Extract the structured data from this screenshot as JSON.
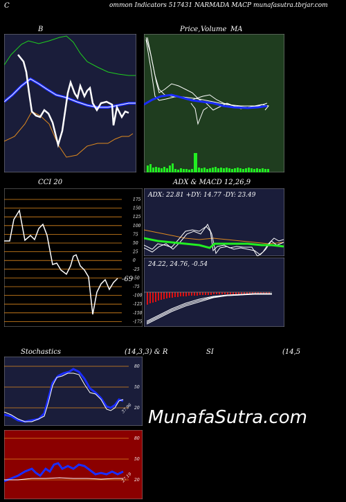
{
  "header": {
    "title": "ommon  Indicators 517431 NARMADA MACP munafasutra.tbrjar.com",
    "left_letter": "C"
  },
  "bollinger": {
    "label": "B"
  },
  "price": {
    "label": "Price,",
    "overlay_label": "Volume",
    "ma_label": "MA"
  },
  "cci": {
    "label": "CCI 20",
    "last_value": "-69",
    "ticks": [
      "175",
      "150",
      "125",
      "100",
      "75",
      "50",
      "25",
      "0",
      "-25",
      "-50",
      "-75",
      "-100",
      "-125",
      "-150",
      "-175"
    ]
  },
  "adx": {
    "label": "ADX  & MACD 12,26,9",
    "values_text": "ADX: 22.81  +DY: 14.77  -DY: 23.49"
  },
  "macd": {
    "values_text": "24.22,  24.76,  -0.54"
  },
  "stoch": {
    "label": "Stochastics",
    "params": "(14,3,3) & R",
    "rsi_label": "SI",
    "rsi_params": "(14,5",
    "ticks": [
      "80",
      "50",
      "20"
    ],
    "last_value": "37.96"
  },
  "rsi": {
    "ticks": [
      "80",
      "50",
      "20"
    ],
    "last_value": "27.19"
  },
  "watermark": "MunafaSutra.com",
  "colors": {
    "navy": "#1a1d3a",
    "green": "#1f3d1f",
    "orange": "#e08a1e",
    "blue": "#1a2cff",
    "lime": "#22ee22",
    "red": "#8b0000"
  }
}
